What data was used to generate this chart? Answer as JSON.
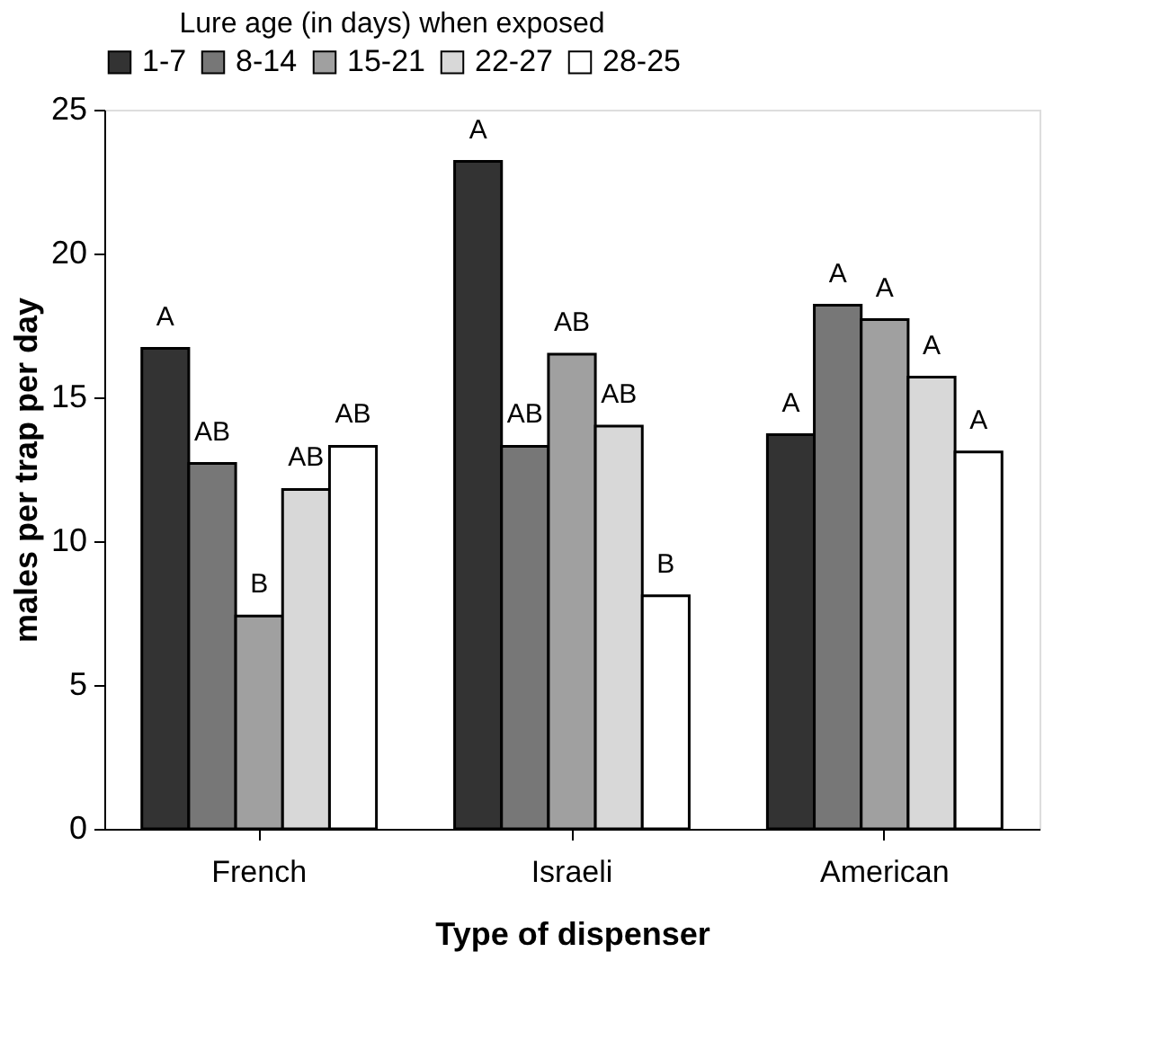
{
  "chart_data": {
    "type": "bar",
    "xlabel": "Type of dispenser",
    "ylabel": "males per trap per day",
    "legend_title": "Lure age (in days) when exposed",
    "legend": "top",
    "grid": false,
    "categories": [
      "French",
      "Israeli",
      "American"
    ],
    "ylim": [
      0,
      25
    ],
    "yticks": [
      0,
      5,
      10,
      15,
      20,
      25
    ],
    "series": [
      {
        "name": "1-7",
        "color": "#333333",
        "values": [
          16.7,
          23.2,
          13.7
        ],
        "value_labels": [
          "A",
          "A",
          "A"
        ]
      },
      {
        "name": "8-14",
        "color": "#777777",
        "values": [
          12.7,
          13.3,
          18.2
        ],
        "value_labels": [
          "AB",
          "AB",
          "A"
        ]
      },
      {
        "name": "15-21",
        "color": "#a0a0a0",
        "values": [
          7.4,
          16.5,
          17.7
        ],
        "value_labels": [
          "B",
          "AB",
          "A"
        ]
      },
      {
        "name": "22-27",
        "color": "#d8d8d8",
        "values": [
          11.8,
          14.0,
          15.7
        ],
        "value_labels": [
          "AB",
          "AB",
          "A"
        ]
      },
      {
        "name": "28-25",
        "color": "#ffffff",
        "values": [
          13.3,
          8.1,
          13.1
        ],
        "value_labels": [
          "AB",
          "B",
          "A"
        ]
      }
    ]
  }
}
